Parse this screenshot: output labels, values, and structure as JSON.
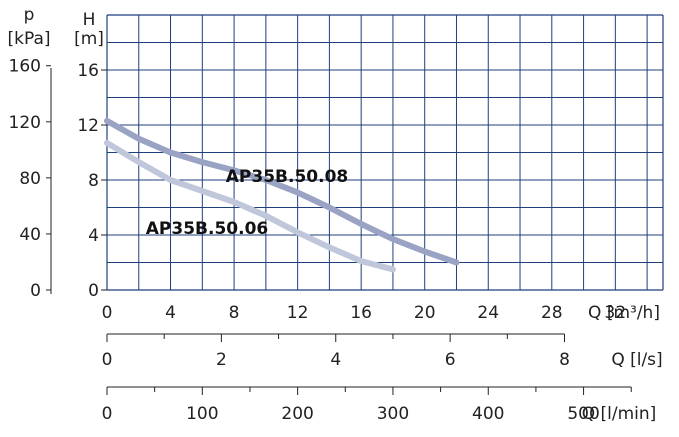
{
  "chart_data": {
    "type": "line",
    "y_axis_head": {
      "p": "p",
      "p_unit": "[kPa]",
      "h": "H",
      "h_unit": "[m]"
    },
    "x_label_primary": "Q [m³/h]",
    "x_label_ls": "Q [l/s]",
    "x_label_lmin": "Q [l/min]",
    "x_ticks": [
      "0",
      "4",
      "8",
      "12",
      "16",
      "20",
      "24",
      "28",
      "32"
    ],
    "y_ticks_h": [
      "0",
      "4",
      "8",
      "12",
      "16"
    ],
    "y_ticks_kpa": [
      "0",
      "40",
      "80",
      "120",
      "160"
    ],
    "ls_ticks": [
      "0",
      "2",
      "4",
      "6",
      "8"
    ],
    "lmin_ticks": [
      "0",
      "100",
      "200",
      "300",
      "400",
      "500"
    ],
    "xlim": [
      0,
      35
    ],
    "ylim": [
      0,
      20
    ],
    "grid": true,
    "series": [
      {
        "name": "AP35B.50.08",
        "color": "#9aa3c4",
        "x": [
          0,
          2,
          4,
          6,
          8,
          10,
          12,
          14,
          16,
          18,
          20,
          22
        ],
        "y": [
          12.3,
          11.0,
          10.0,
          9.3,
          8.7,
          8.0,
          7.1,
          6.0,
          4.8,
          3.7,
          2.8,
          2.0
        ]
      },
      {
        "name": "AP35B.50.06",
        "color": "#c0c7da",
        "x": [
          0,
          2,
          4,
          6,
          8,
          10,
          12,
          14,
          16,
          18
        ],
        "y": [
          10.7,
          9.3,
          8.0,
          7.2,
          6.4,
          5.4,
          4.2,
          3.1,
          2.1,
          1.5
        ]
      }
    ]
  },
  "colors": {
    "grid": "#1f3f7f",
    "axis": "#222222"
  }
}
